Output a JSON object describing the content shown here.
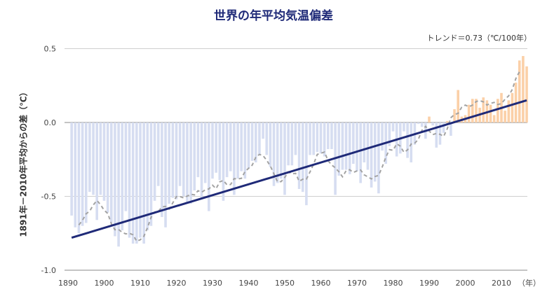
{
  "chart_data": {
    "type": "bar",
    "title": "世界の年平均気温偏差",
    "ylabel": "1891年－2010年平均からの差（℃）",
    "xlabel_unit": "（年）",
    "annotation": "トレンド＝0.73（℃/100年）",
    "x_start": 1891,
    "x_end": 2017,
    "xlim": [
      1890,
      2018
    ],
    "ylim": [
      -1.0,
      0.5
    ],
    "x_ticks": [
      "1890",
      "1900",
      "1910",
      "1920",
      "1930",
      "1940",
      "1950",
      "1960",
      "1970",
      "1980",
      "1990",
      "2000",
      "2010"
    ],
    "y_ticks": [
      "0.5",
      "0.0",
      "-0.5",
      "-1.0"
    ],
    "grid": true,
    "values": [
      -0.63,
      -0.71,
      -0.75,
      -0.7,
      -0.68,
      -0.47,
      -0.49,
      -0.66,
      -0.49,
      -0.53,
      -0.61,
      -0.68,
      -0.77,
      -0.84,
      -0.73,
      -0.6,
      -0.78,
      -0.82,
      -0.82,
      -0.78,
      -0.82,
      -0.73,
      -0.7,
      -0.53,
      -0.43,
      -0.64,
      -0.71,
      -0.55,
      -0.51,
      -0.52,
      -0.43,
      -0.5,
      -0.55,
      -0.55,
      -0.46,
      -0.37,
      -0.52,
      -0.41,
      -0.6,
      -0.38,
      -0.34,
      -0.39,
      -0.53,
      -0.37,
      -0.33,
      -0.49,
      -0.38,
      -0.33,
      -0.38,
      -0.31,
      -0.26,
      -0.27,
      -0.22,
      -0.11,
      -0.22,
      -0.3,
      -0.43,
      -0.41,
      -0.38,
      -0.49,
      -0.29,
      -0.29,
      -0.22,
      -0.45,
      -0.47,
      -0.56,
      -0.22,
      -0.22,
      -0.2,
      -0.21,
      -0.23,
      -0.18,
      -0.18,
      -0.49,
      -0.36,
      -0.32,
      -0.32,
      -0.35,
      -0.28,
      -0.33,
      -0.41,
      -0.27,
      -0.32,
      -0.44,
      -0.4,
      -0.48,
      -0.19,
      -0.28,
      -0.16,
      -0.06,
      -0.23,
      -0.21,
      -0.06,
      -0.24,
      -0.27,
      -0.15,
      -0.01,
      -0.03,
      -0.11,
      0.04,
      -0.02,
      -0.17,
      -0.15,
      -0.07,
      0.01,
      -0.09,
      0.09,
      0.22,
      0.04,
      0.05,
      0.12,
      0.16,
      0.16,
      0.1,
      0.17,
      0.15,
      0.12,
      0.05,
      0.16,
      0.2,
      0.08,
      0.15,
      0.2,
      0.27,
      0.42,
      0.45,
      0.38
    ],
    "running_mean_window": 5,
    "trend": {
      "slope_per_100yr": 0.73,
      "start": [
        1891,
        -0.78
      ],
      "end": [
        2017,
        0.15
      ]
    },
    "colors": {
      "negative": "#d6ddf1",
      "positive": "#fbd0a8",
      "trend": "#1f2a78",
      "running_mean": "#a3a3a3",
      "title": "#1f2a78"
    }
  }
}
